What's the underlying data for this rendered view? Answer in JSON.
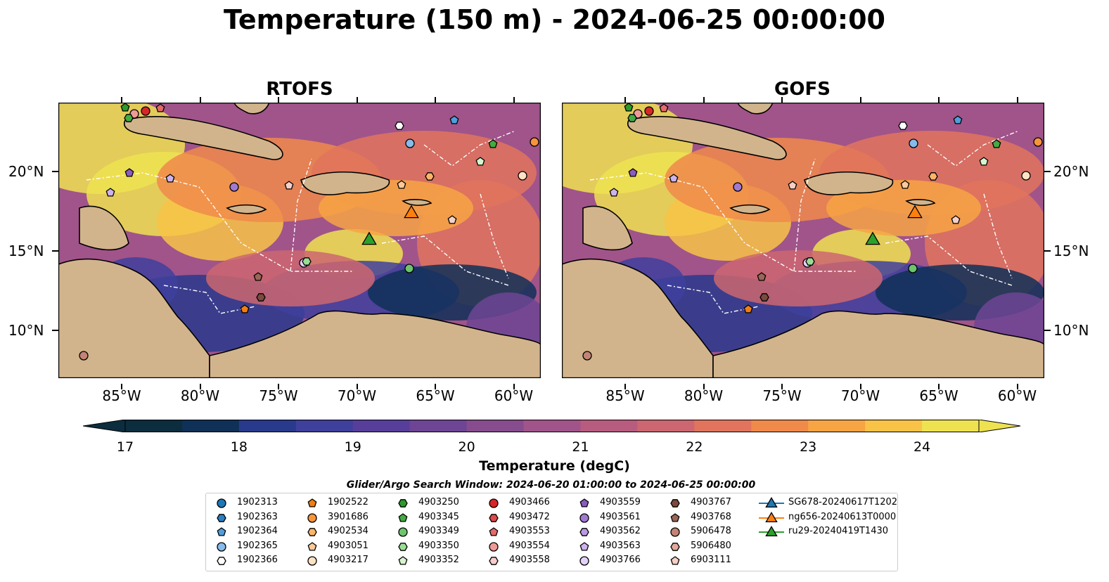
{
  "title": "Temperature (150 m) - 2024-06-25 00:00:00",
  "panels": [
    {
      "title": "RTOFS"
    },
    {
      "title": "GOFS"
    }
  ],
  "lon_ticks": [
    "85°W",
    "80°W",
    "75°W",
    "70°W",
    "65°W",
    "60°W"
  ],
  "lat_ticks": [
    "20°N",
    "15°N",
    "10°N"
  ],
  "colorbar": {
    "label": "Temperature (degC)",
    "ticks": [
      "17",
      "18",
      "19",
      "20",
      "21",
      "22",
      "23",
      "24"
    ],
    "colors": [
      "#0b2d3e",
      "#0f3057",
      "#293a8c",
      "#3f3f9c",
      "#573e9a",
      "#6d4594",
      "#874c8d",
      "#a0548a",
      "#b75c7e",
      "#cc6670",
      "#e0745d",
      "#f08a4b",
      "#f7a444",
      "#f8c347",
      "#eee251"
    ]
  },
  "search_window": "Glider/Argo Search Window: 2024-06-20 01:00:00 to 2024-06-25 00:00:00",
  "legend": [
    {
      "label": "1902313",
      "shape": "circle",
      "color": "#1f77b4"
    },
    {
      "label": "1902363",
      "shape": "hexagon",
      "color": "#2a7fc2"
    },
    {
      "label": "1902364",
      "shape": "pentagon",
      "color": "#4f9fdc"
    },
    {
      "label": "1902365",
      "shape": "circle",
      "color": "#86bbea"
    },
    {
      "label": "1902366",
      "shape": "hexagon",
      "color": "#ffffff"
    },
    {
      "label": "1902522",
      "shape": "pentagon",
      "color": "#f07f10"
    },
    {
      "label": "3901686",
      "shape": "circle",
      "color": "#f8953a"
    },
    {
      "label": "4902534",
      "shape": "hexagon",
      "color": "#fbb46a"
    },
    {
      "label": "4903051",
      "shape": "pentagon",
      "color": "#fdc99a"
    },
    {
      "label": "4903217",
      "shape": "circle",
      "color": "#fde2c4"
    },
    {
      "label": "4903250",
      "shape": "hexagon",
      "color": "#2c9a2c"
    },
    {
      "label": "4903345",
      "shape": "pentagon",
      "color": "#44ab44"
    },
    {
      "label": "4903349",
      "shape": "circle",
      "color": "#6cc56c"
    },
    {
      "label": "4903350",
      "shape": "hexagon",
      "color": "#9bdc95"
    },
    {
      "label": "4903352",
      "shape": "pentagon",
      "color": "#d6f5cf"
    },
    {
      "label": "4903466",
      "shape": "circle",
      "color": "#d62728"
    },
    {
      "label": "4903472",
      "shape": "hexagon",
      "color": "#dd4a4a"
    },
    {
      "label": "4903553",
      "shape": "pentagon",
      "color": "#e56a6a"
    },
    {
      "label": "4903554",
      "shape": "circle",
      "color": "#ee9a96"
    },
    {
      "label": "4903558",
      "shape": "hexagon",
      "color": "#f8cccc"
    },
    {
      "label": "4903559",
      "shape": "pentagon",
      "color": "#8a5cc0"
    },
    {
      "label": "4903561",
      "shape": "circle",
      "color": "#a07ad0"
    },
    {
      "label": "4903562",
      "shape": "hexagon",
      "color": "#b99ae0"
    },
    {
      "label": "4903563",
      "shape": "pentagon",
      "color": "#ccb3ec"
    },
    {
      "label": "4903766",
      "shape": "circle",
      "color": "#e3d2f7"
    },
    {
      "label": "4903767",
      "shape": "hexagon",
      "color": "#7a4a3c"
    },
    {
      "label": "4903768",
      "shape": "pentagon",
      "color": "#9a6656"
    },
    {
      "label": "5906478",
      "shape": "circle",
      "color": "#c28474"
    },
    {
      "label": "5906480",
      "shape": "hexagon",
      "color": "#e0a99c"
    },
    {
      "label": "6903111",
      "shape": "pentagon",
      "color": "#f6cfc6"
    },
    {
      "label": "SG678-20240617T1202",
      "shape": "triangle-line",
      "color": "#1f77b4"
    },
    {
      "label": "ng656-20240613T0000",
      "shape": "triangle-line",
      "color": "#ff7f0e"
    },
    {
      "label": "ru29-20240419T1430",
      "shape": "triangle-line",
      "color": "#2ca02c"
    }
  ]
}
